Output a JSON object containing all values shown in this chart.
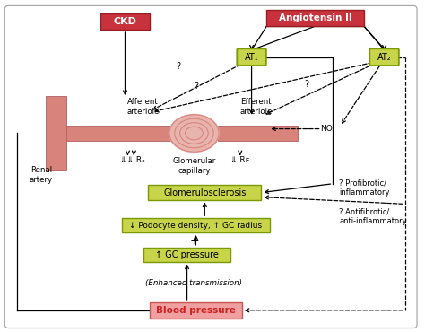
{
  "vessel_color": "#d9847a",
  "vessel_edge": "#b06060",
  "red_fill": "#c8323c",
  "red_edge": "#9b1c22",
  "pink_fill": "#f0a0a0",
  "pink_edge": "#cc5555",
  "green_fill": "#c8d44a",
  "green_edge": "#7a9a00",
  "at_fill": "#c8d44a",
  "at_edge": "#7a9a00",
  "title_ckd": "CKD",
  "title_angiotensin": "Angiotensin II",
  "label_at1": "AT₁",
  "label_at2": "AT₂",
  "label_afferent": "Afferent\narteriole",
  "label_efferent": "Efferent\narteriole",
  "label_renal": "Renal\nartery",
  "label_glom_cap": "Glomerular\ncapillary",
  "label_ra": "⇓⇓ Rₐ",
  "label_re": "⇓ Rᴇ",
  "label_glomerulosclerosis": "Glomerulosclerosis",
  "label_podocyte": "↓ Podocyte density, ↑ GC radius",
  "label_gcp": "↑ GC pressure",
  "label_enhanced": "(Enhanced transmission)",
  "label_blood_pressure": "Blood pressure",
  "label_no": "NO",
  "label_profibrotic": "? Profibrotic/\ninflammatory",
  "label_antifibrotic": "? Antifibrotic/\nanti-inflammatory"
}
